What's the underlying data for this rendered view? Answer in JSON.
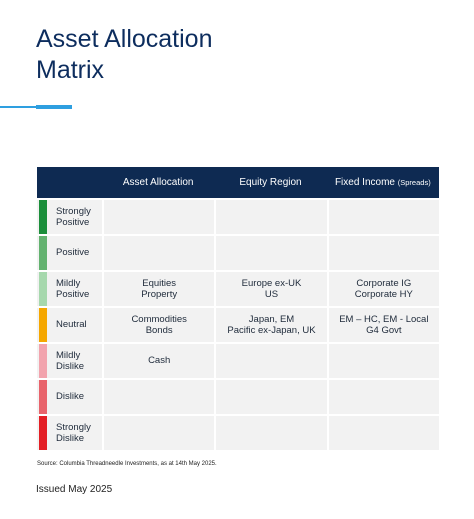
{
  "title": {
    "line1": "Asset Allocation",
    "line2": "Matrix"
  },
  "table": {
    "headers": {
      "blank": "",
      "asset_allocation": "Asset Allocation",
      "equity_region": "Equity Region",
      "fixed_income": "Fixed Income",
      "fixed_income_note": "(Spreads)"
    },
    "rows": [
      {
        "label": [
          "Strongly",
          "Positive"
        ],
        "color": "#1b8e3a",
        "asset": [],
        "equity": [],
        "fixed": []
      },
      {
        "label": [
          "Positive"
        ],
        "color": "#63b26f",
        "asset": [],
        "equity": [],
        "fixed": []
      },
      {
        "label": [
          "Mildly",
          "Positive"
        ],
        "color": "#a6d8ad",
        "asset": [
          "Equities",
          "Property"
        ],
        "equity": [
          "Europe ex-UK",
          "US"
        ],
        "fixed": [
          "Corporate IG",
          "Corporate HY"
        ]
      },
      {
        "label": [
          "Neutral"
        ],
        "color": "#f5a700",
        "asset": [
          "Commodities",
          "Bonds"
        ],
        "equity": [
          "Japan, EM",
          "Pacific ex-Japan, UK"
        ],
        "fixed": [
          "EM – HC, EM - Local",
          "G4 Govt"
        ]
      },
      {
        "label": [
          "Mildly",
          "Dislike"
        ],
        "color": "#f2a3ad",
        "asset": [
          "Cash"
        ],
        "equity": [],
        "fixed": []
      },
      {
        "label": [
          "Dislike"
        ],
        "color": "#e8636b",
        "asset": [],
        "equity": [],
        "fixed": []
      },
      {
        "label": [
          "Strongly",
          "Dislike"
        ],
        "color": "#e31e24",
        "asset": [],
        "equity": [],
        "fixed": []
      }
    ]
  },
  "source": "Source: Columbia Threadneedle Investments, as at 14th May 2025.",
  "issued": "Issued May 2025"
}
